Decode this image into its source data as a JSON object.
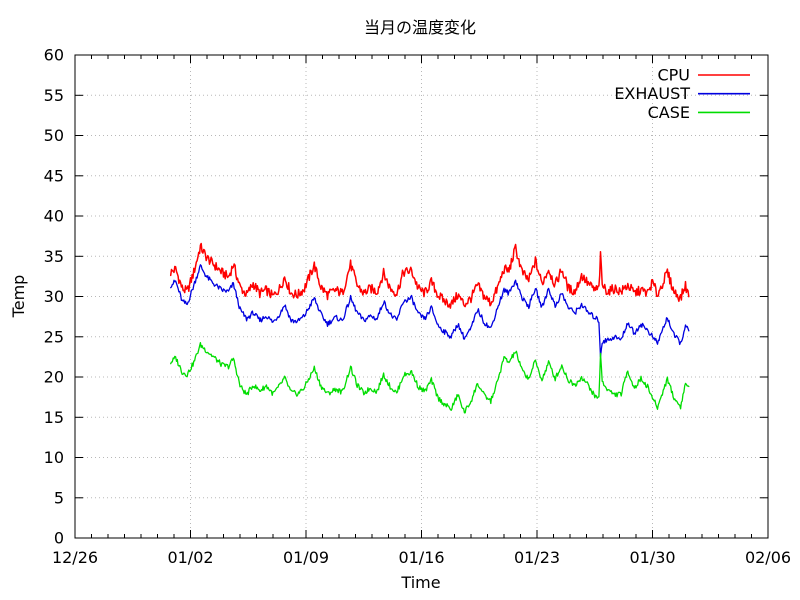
{
  "title": "当月の温度変化",
  "axes": {
    "x_label": "Time",
    "y_label": "Temp",
    "x_tick_labels": [
      "12/26",
      "01/02",
      "01/09",
      "01/16",
      "01/23",
      "01/30",
      "02/06"
    ],
    "y_tick_labels": [
      "0",
      "5",
      "10",
      "15",
      "20",
      "25",
      "30",
      "35",
      "40",
      "45",
      "50",
      "55",
      "60"
    ]
  },
  "legend": {
    "entries": [
      {
        "label": "CPU",
        "color": "#ff0000"
      },
      {
        "label": "EXHAUST",
        "color": "#0000e0"
      },
      {
        "label": "CASE",
        "color": "#00dd00"
      }
    ],
    "position": "top-right-inside"
  },
  "colors": {
    "background": "#ffffff",
    "border": "#000000",
    "grid": "#b8b8b8",
    "text": "#000000"
  },
  "chart_data": {
    "type": "line",
    "title": "当月の温度変化",
    "xlabel": "Time",
    "ylabel": "Temp",
    "ylim": [
      0,
      60
    ],
    "y_tick_step": 5,
    "x_axis": {
      "unit": "days since 12/26",
      "major_ticks_days": [
        0,
        7,
        14,
        21,
        28,
        35,
        42
      ],
      "major_tick_labels": [
        "12/26",
        "01/02",
        "01/09",
        "01/16",
        "01/23",
        "01/30",
        "02/06"
      ],
      "minor_tick_interval_days": 1,
      "data_day_range": [
        5.8,
        37.2
      ]
    },
    "grid": "dotted at major ticks, both axes",
    "legend_position": "top-right inside plot, no box",
    "series": [
      {
        "name": "CPU",
        "color": "#ff0000",
        "noise_amplitude": 0.6,
        "points": [
          [
            5.8,
            33.0
          ],
          [
            6.1,
            33.4
          ],
          [
            6.5,
            31.0
          ],
          [
            6.8,
            30.6
          ],
          [
            7.2,
            33.0
          ],
          [
            7.6,
            36.2
          ],
          [
            8.0,
            34.8
          ],
          [
            8.4,
            34.0
          ],
          [
            8.9,
            33.0
          ],
          [
            9.3,
            32.4
          ],
          [
            9.6,
            34.0
          ],
          [
            10.0,
            31.2
          ],
          [
            10.4,
            30.2
          ],
          [
            10.8,
            31.6
          ],
          [
            11.2,
            30.4
          ],
          [
            11.6,
            30.8
          ],
          [
            12.0,
            30.0
          ],
          [
            12.4,
            31.0
          ],
          [
            12.7,
            32.4
          ],
          [
            13.1,
            30.4
          ],
          [
            13.5,
            30.2
          ],
          [
            13.9,
            31.0
          ],
          [
            14.5,
            33.9
          ],
          [
            14.9,
            31.2
          ],
          [
            15.3,
            30.2
          ],
          [
            15.8,
            30.8
          ],
          [
            16.2,
            30.4
          ],
          [
            16.7,
            34.0
          ],
          [
            17.1,
            31.4
          ],
          [
            17.5,
            30.4
          ],
          [
            17.9,
            31.0
          ],
          [
            18.3,
            30.6
          ],
          [
            18.7,
            32.9
          ],
          [
            19.1,
            31.0
          ],
          [
            19.5,
            30.4
          ],
          [
            19.9,
            33.0
          ],
          [
            20.4,
            33.2
          ],
          [
            20.8,
            31.0
          ],
          [
            21.2,
            30.4
          ],
          [
            21.6,
            31.8
          ],
          [
            22.0,
            30.2
          ],
          [
            22.4,
            29.4
          ],
          [
            22.8,
            29.0
          ],
          [
            23.2,
            30.2
          ],
          [
            23.6,
            29.0
          ],
          [
            24.0,
            29.8
          ],
          [
            24.4,
            31.4
          ],
          [
            24.8,
            30.0
          ],
          [
            25.2,
            29.2
          ],
          [
            25.6,
            31.0
          ],
          [
            26.0,
            33.4
          ],
          [
            26.3,
            33.2
          ],
          [
            26.7,
            36.0
          ],
          [
            27.1,
            33.0
          ],
          [
            27.5,
            32.0
          ],
          [
            27.9,
            34.4
          ],
          [
            28.3,
            31.6
          ],
          [
            28.7,
            33.4
          ],
          [
            29.1,
            31.4
          ],
          [
            29.5,
            33.4
          ],
          [
            29.9,
            31.0
          ],
          [
            30.3,
            30.6
          ],
          [
            30.7,
            32.6
          ],
          [
            31.1,
            31.6
          ],
          [
            31.5,
            30.8
          ],
          [
            31.75,
            31.0
          ],
          [
            31.85,
            35.0
          ],
          [
            31.95,
            31.4
          ],
          [
            32.3,
            30.6
          ],
          [
            32.7,
            31.0
          ],
          [
            33.1,
            30.6
          ],
          [
            33.5,
            31.4
          ],
          [
            33.9,
            30.4
          ],
          [
            34.3,
            30.8
          ],
          [
            34.7,
            30.4
          ],
          [
            35.0,
            31.8
          ],
          [
            35.3,
            30.2
          ],
          [
            35.9,
            33.0
          ],
          [
            36.3,
            30.6
          ],
          [
            36.7,
            29.8
          ],
          [
            37.0,
            31.4
          ],
          [
            37.2,
            30.0
          ]
        ]
      },
      {
        "name": "EXHAUST",
        "color": "#0000e0",
        "noise_amplitude": 0.32,
        "points": [
          [
            5.8,
            31.4
          ],
          [
            6.1,
            31.9
          ],
          [
            6.5,
            29.4
          ],
          [
            6.8,
            29.0
          ],
          [
            7.2,
            31.4
          ],
          [
            7.6,
            33.8
          ],
          [
            8.0,
            32.4
          ],
          [
            8.4,
            31.6
          ],
          [
            8.9,
            30.8
          ],
          [
            9.3,
            30.6
          ],
          [
            9.6,
            31.6
          ],
          [
            10.0,
            28.4
          ],
          [
            10.4,
            27.2
          ],
          [
            10.8,
            28.0
          ],
          [
            11.2,
            27.0
          ],
          [
            11.6,
            27.6
          ],
          [
            12.0,
            26.8
          ],
          [
            12.4,
            27.8
          ],
          [
            12.7,
            29.0
          ],
          [
            13.1,
            27.0
          ],
          [
            13.5,
            26.9
          ],
          [
            13.9,
            27.6
          ],
          [
            14.5,
            29.8
          ],
          [
            14.9,
            27.8
          ],
          [
            15.3,
            26.6
          ],
          [
            15.8,
            27.4
          ],
          [
            16.2,
            27.0
          ],
          [
            16.7,
            29.8
          ],
          [
            17.1,
            28.0
          ],
          [
            17.5,
            27.0
          ],
          [
            17.9,
            27.6
          ],
          [
            18.3,
            27.2
          ],
          [
            18.7,
            29.4
          ],
          [
            19.1,
            27.8
          ],
          [
            19.5,
            27.0
          ],
          [
            19.9,
            29.4
          ],
          [
            20.4,
            29.8
          ],
          [
            20.8,
            27.8
          ],
          [
            21.2,
            27.2
          ],
          [
            21.6,
            28.6
          ],
          [
            22.0,
            26.4
          ],
          [
            22.4,
            25.6
          ],
          [
            22.8,
            25.0
          ],
          [
            23.2,
            26.6
          ],
          [
            23.6,
            24.8
          ],
          [
            24.0,
            26.0
          ],
          [
            24.4,
            28.4
          ],
          [
            24.8,
            26.8
          ],
          [
            25.2,
            26.0
          ],
          [
            25.6,
            28.6
          ],
          [
            26.0,
            30.8
          ],
          [
            26.3,
            30.4
          ],
          [
            26.7,
            32.0
          ],
          [
            27.1,
            29.8
          ],
          [
            27.5,
            28.8
          ],
          [
            27.9,
            31.0
          ],
          [
            28.3,
            28.6
          ],
          [
            28.7,
            31.0
          ],
          [
            29.1,
            28.8
          ],
          [
            29.5,
            30.4
          ],
          [
            29.9,
            28.6
          ],
          [
            30.3,
            28.0
          ],
          [
            30.7,
            29.0
          ],
          [
            31.1,
            28.0
          ],
          [
            31.5,
            27.4
          ],
          [
            31.75,
            27.0
          ],
          [
            31.85,
            22.6
          ],
          [
            31.95,
            24.4
          ],
          [
            32.3,
            24.6
          ],
          [
            32.7,
            25.0
          ],
          [
            33.1,
            24.6
          ],
          [
            33.5,
            26.8
          ],
          [
            33.9,
            25.4
          ],
          [
            34.3,
            26.6
          ],
          [
            34.7,
            25.8
          ],
          [
            35.0,
            25.0
          ],
          [
            35.3,
            24.2
          ],
          [
            35.9,
            27.4
          ],
          [
            36.3,
            25.2
          ],
          [
            36.7,
            24.2
          ],
          [
            37.0,
            26.2
          ],
          [
            37.2,
            25.8
          ]
        ]
      },
      {
        "name": "CASE",
        "color": "#00dd00",
        "noise_amplitude": 0.32,
        "points": [
          [
            5.8,
            21.8
          ],
          [
            6.1,
            22.4
          ],
          [
            6.5,
            20.6
          ],
          [
            6.8,
            20.3
          ],
          [
            7.2,
            21.8
          ],
          [
            7.6,
            24.0
          ],
          [
            8.0,
            23.2
          ],
          [
            8.4,
            22.5
          ],
          [
            8.9,
            21.5
          ],
          [
            9.3,
            21.3
          ],
          [
            9.6,
            22.3
          ],
          [
            10.0,
            18.9
          ],
          [
            10.4,
            17.8
          ],
          [
            10.8,
            19.0
          ],
          [
            11.2,
            18.3
          ],
          [
            11.6,
            18.9
          ],
          [
            12.0,
            17.9
          ],
          [
            12.4,
            18.9
          ],
          [
            12.7,
            19.9
          ],
          [
            13.1,
            18.1
          ],
          [
            13.5,
            17.9
          ],
          [
            13.9,
            18.7
          ],
          [
            14.5,
            21.1
          ],
          [
            14.9,
            18.9
          ],
          [
            15.3,
            17.9
          ],
          [
            15.8,
            18.5
          ],
          [
            16.2,
            18.1
          ],
          [
            16.7,
            21.2
          ],
          [
            17.1,
            19.0
          ],
          [
            17.5,
            18.0
          ],
          [
            17.9,
            18.6
          ],
          [
            18.3,
            18.2
          ],
          [
            18.7,
            20.3
          ],
          [
            19.1,
            18.8
          ],
          [
            19.5,
            18.0
          ],
          [
            19.9,
            20.2
          ],
          [
            20.4,
            20.6
          ],
          [
            20.8,
            18.8
          ],
          [
            21.2,
            18.2
          ],
          [
            21.6,
            19.6
          ],
          [
            22.0,
            17.4
          ],
          [
            22.4,
            16.6
          ],
          [
            22.8,
            16.0
          ],
          [
            23.2,
            17.8
          ],
          [
            23.6,
            15.6
          ],
          [
            24.0,
            17.0
          ],
          [
            24.4,
            19.2
          ],
          [
            24.8,
            17.7
          ],
          [
            25.2,
            17.0
          ],
          [
            25.6,
            19.4
          ],
          [
            26.0,
            22.4
          ],
          [
            26.3,
            21.8
          ],
          [
            26.7,
            23.2
          ],
          [
            27.1,
            20.8
          ],
          [
            27.5,
            19.8
          ],
          [
            27.9,
            22.0
          ],
          [
            28.3,
            19.6
          ],
          [
            28.7,
            21.8
          ],
          [
            29.1,
            19.8
          ],
          [
            29.5,
            21.4
          ],
          [
            29.9,
            19.6
          ],
          [
            30.3,
            19.0
          ],
          [
            30.7,
            20.0
          ],
          [
            31.1,
            19.0
          ],
          [
            31.5,
            17.6
          ],
          [
            31.75,
            17.4
          ],
          [
            31.85,
            23.0
          ],
          [
            31.95,
            19.4
          ],
          [
            32.3,
            18.4
          ],
          [
            32.7,
            17.8
          ],
          [
            33.1,
            17.9
          ],
          [
            33.5,
            20.8
          ],
          [
            33.9,
            18.6
          ],
          [
            34.3,
            19.8
          ],
          [
            34.7,
            18.8
          ],
          [
            35.0,
            17.4
          ],
          [
            35.3,
            16.2
          ],
          [
            35.9,
            19.8
          ],
          [
            36.3,
            17.4
          ],
          [
            36.7,
            16.3
          ],
          [
            37.0,
            19.2
          ],
          [
            37.2,
            18.8
          ]
        ]
      }
    ]
  }
}
